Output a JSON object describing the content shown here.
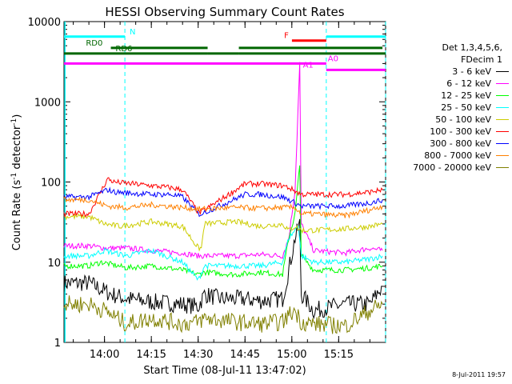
{
  "chart_data": {
    "type": "line",
    "title": "HESSI Observing Summary Count Rates",
    "xlabel": "Start Time (08-Jul-11 13:47:02)",
    "ylabel_main": "Count Rate (s",
    "ylabel_sup1": "-1",
    "ylabel_mid": " detector",
    "ylabel_sup2": "-1",
    "ylabel_end": ")",
    "y_scale": "log",
    "ylim": [
      1,
      10000
    ],
    "xlim_minutes": [
      0,
      103
    ],
    "x_ticks": [
      {
        "label": "14:00",
        "t": 12.97
      },
      {
        "label": "14:15",
        "t": 27.97
      },
      {
        "label": "14:30",
        "t": 42.97
      },
      {
        "label": "14:45",
        "t": 57.97
      },
      {
        "label": "15:00",
        "t": 72.97
      },
      {
        "label": "15:15",
        "t": 87.97
      }
    ],
    "y_ticks": [
      {
        "label": "1",
        "v": 1
      },
      {
        "label": "10",
        "v": 10
      },
      {
        "label": "100",
        "v": 100
      },
      {
        "label": "1000",
        "v": 1000
      },
      {
        "label": "10000",
        "v": 10000
      }
    ],
    "legend": {
      "header1": "Det 1,3,4,5,6,",
      "header2": "FDecim 1",
      "placement": "right",
      "items": [
        {
          "label": "3 - 6 keV",
          "color": "#000000"
        },
        {
          "label": "6 - 12 keV",
          "color": "#ff00ff"
        },
        {
          "label": "12 - 25 keV",
          "color": "#00ff00"
        },
        {
          "label": "25 - 50 keV",
          "color": "#00ffff"
        },
        {
          "label": "50 - 100 keV",
          "color": "#cccc00"
        },
        {
          "label": "100 - 300 keV",
          "color": "#ff0000"
        },
        {
          "label": "300 - 800 keV",
          "color": "#0000ff"
        },
        {
          "label": "800 - 7000 keV",
          "color": "#ff8000"
        },
        {
          "label": "7000 - 20000 keV",
          "color": "#808000"
        }
      ]
    },
    "series": [
      {
        "name": "3 - 6 keV",
        "color": "#000000",
        "points": [
          [
            0,
            5.5
          ],
          [
            8,
            5.5
          ],
          [
            15,
            4
          ],
          [
            20,
            3.5
          ],
          [
            28,
            3.2
          ],
          [
            38,
            3
          ],
          [
            43,
            2.8
          ],
          [
            45,
            4
          ],
          [
            50,
            3.5
          ],
          [
            57,
            3.5
          ],
          [
            63,
            3.3
          ],
          [
            70,
            3.5
          ],
          [
            72,
            8
          ],
          [
            74,
            20
          ],
          [
            75.5,
            30
          ],
          [
            76,
            4
          ],
          [
            80,
            2.5
          ],
          [
            90,
            3
          ],
          [
            98,
            3
          ],
          [
            102,
            5
          ]
        ]
      },
      {
        "name": "6 - 12 keV",
        "color": "#ff00ff",
        "points": [
          [
            0,
            16
          ],
          [
            8,
            16
          ],
          [
            13,
            15
          ],
          [
            20,
            15
          ],
          [
            28,
            14
          ],
          [
            38,
            13
          ],
          [
            43,
            12
          ],
          [
            45,
            12
          ],
          [
            55,
            12
          ],
          [
            63,
            12.5
          ],
          [
            70,
            12
          ],
          [
            72,
            20
          ],
          [
            74,
            80
          ],
          [
            75.5,
            3000
          ],
          [
            76,
            30
          ],
          [
            80,
            14
          ],
          [
            90,
            13
          ],
          [
            98,
            15
          ],
          [
            102,
            14
          ]
        ]
      },
      {
        "name": "12 - 25 keV",
        "color": "#00ff00",
        "points": [
          [
            0,
            9
          ],
          [
            8,
            9
          ],
          [
            12,
            10
          ],
          [
            20,
            8.5
          ],
          [
            28,
            9
          ],
          [
            38,
            8
          ],
          [
            43,
            7
          ],
          [
            45,
            7.5
          ],
          [
            55,
            7
          ],
          [
            63,
            7.5
          ],
          [
            70,
            7
          ],
          [
            72,
            20
          ],
          [
            74,
            40
          ],
          [
            75.5,
            160
          ],
          [
            76,
            12
          ],
          [
            80,
            8
          ],
          [
            90,
            8
          ],
          [
            98,
            8.5
          ],
          [
            102,
            9
          ]
        ]
      },
      {
        "name": "25 - 50 keV",
        "color": "#00ffff",
        "points": [
          [
            0,
            12
          ],
          [
            8,
            12
          ],
          [
            13,
            14
          ],
          [
            20,
            12
          ],
          [
            28,
            14
          ],
          [
            38,
            10
          ],
          [
            43,
            6
          ],
          [
            45,
            9
          ],
          [
            55,
            9
          ],
          [
            63,
            9
          ],
          [
            70,
            10
          ],
          [
            72,
            20
          ],
          [
            74,
            25
          ],
          [
            75,
            30
          ],
          [
            76,
            12
          ],
          [
            80,
            10
          ],
          [
            90,
            10
          ],
          [
            98,
            11
          ],
          [
            102,
            12
          ]
        ]
      },
      {
        "name": "50 - 100 keV",
        "color": "#cccc00",
        "points": [
          [
            0,
            37
          ],
          [
            8,
            37
          ],
          [
            13,
            30
          ],
          [
            18,
            28
          ],
          [
            28,
            32
          ],
          [
            38,
            28
          ],
          [
            43,
            15
          ],
          [
            44,
            15
          ],
          [
            45,
            30
          ],
          [
            55,
            32
          ],
          [
            63,
            28
          ],
          [
            70,
            30
          ],
          [
            72,
            25
          ],
          [
            74,
            28
          ],
          [
            76,
            25
          ],
          [
            80,
            25
          ],
          [
            90,
            26
          ],
          [
            98,
            28
          ],
          [
            102,
            30
          ]
        ]
      },
      {
        "name": "100 - 300 keV",
        "color": "#ff0000",
        "points": [
          [
            0,
            40
          ],
          [
            8,
            40
          ],
          [
            14,
            110
          ],
          [
            16,
            100
          ],
          [
            28,
            90
          ],
          [
            34,
            85
          ],
          [
            38,
            80
          ],
          [
            43,
            42
          ],
          [
            44,
            42
          ],
          [
            58,
            95
          ],
          [
            63,
            95
          ],
          [
            70,
            90
          ],
          [
            72,
            85
          ],
          [
            76,
            70
          ],
          [
            80,
            70
          ],
          [
            90,
            70
          ],
          [
            98,
            75
          ],
          [
            102,
            80
          ]
        ]
      },
      {
        "name": "300 - 800 keV",
        "color": "#0000ff",
        "points": [
          [
            0,
            65
          ],
          [
            8,
            65
          ],
          [
            14,
            80
          ],
          [
            16,
            75
          ],
          [
            28,
            70
          ],
          [
            34,
            70
          ],
          [
            38,
            65
          ],
          [
            43,
            40
          ],
          [
            44,
            40
          ],
          [
            58,
            70
          ],
          [
            63,
            70
          ],
          [
            70,
            65
          ],
          [
            72,
            60
          ],
          [
            76,
            50
          ],
          [
            80,
            50
          ],
          [
            90,
            50
          ],
          [
            98,
            55
          ],
          [
            102,
            60
          ]
        ]
      },
      {
        "name": "800 - 7000 keV",
        "color": "#ff8000",
        "points": [
          [
            0,
            60
          ],
          [
            8,
            60
          ],
          [
            14,
            50
          ],
          [
            20,
            48
          ],
          [
            28,
            52
          ],
          [
            38,
            48
          ],
          [
            43,
            46
          ],
          [
            44,
            46
          ],
          [
            55,
            48
          ],
          [
            63,
            47
          ],
          [
            70,
            48
          ],
          [
            74,
            48
          ],
          [
            76,
            40
          ],
          [
            80,
            40
          ],
          [
            90,
            38
          ],
          [
            98,
            45
          ],
          [
            102,
            50
          ]
        ]
      },
      {
        "name": "7000 - 20000 keV",
        "color": "#808000",
        "points": [
          [
            0,
            3
          ],
          [
            8,
            3
          ],
          [
            13,
            2.5
          ],
          [
            20,
            1.7
          ],
          [
            28,
            2
          ],
          [
            38,
            1.7
          ],
          [
            43,
            1.8
          ],
          [
            45,
            2
          ],
          [
            55,
            1.8
          ],
          [
            63,
            1.7
          ],
          [
            70,
            1.8
          ],
          [
            72,
            2.2
          ],
          [
            74,
            2.5
          ],
          [
            76,
            1.8
          ],
          [
            80,
            1.7
          ],
          [
            90,
            1.6
          ],
          [
            98,
            2.5
          ],
          [
            102,
            3
          ]
        ]
      }
    ],
    "flags": [
      {
        "label": "N",
        "color": "#00ffff",
        "v": 6500,
        "segments": [
          [
            0,
            19.5
          ],
          [
            84,
            103
          ]
        ],
        "label_at": 21
      },
      {
        "label": "RD0",
        "color": "#006600",
        "v": 4700,
        "segments": [
          [
            15,
            46
          ],
          [
            56,
            102
          ]
        ],
        "label_at": 7
      },
      {
        "label": "RD6",
        "color": "#006600",
        "v": 4000,
        "segments": [
          [
            0,
            46
          ],
          [
            46,
            56
          ],
          [
            56,
            103
          ]
        ],
        "label_at": 16.5
      },
      {
        "label": "F",
        "color": "#ff0000",
        "v": 5800,
        "segments": [
          [
            73,
            84
          ]
        ],
        "label_at": 70.5
      },
      {
        "label": "A0",
        "color": "#ff00ff",
        "v": 3000,
        "segments": [
          [
            0,
            84
          ]
        ],
        "label_at": 84.5
      },
      {
        "label": "A1",
        "color": "#ff00ff",
        "v": 2500,
        "segments": [
          [
            84,
            103
          ]
        ],
        "label_at": 76.5
      }
    ],
    "vlines": [
      19.5,
      84,
      103
    ],
    "shade": [
      0,
      0.3
    ]
  },
  "timestamp": "8-Jul-2011 19:57"
}
